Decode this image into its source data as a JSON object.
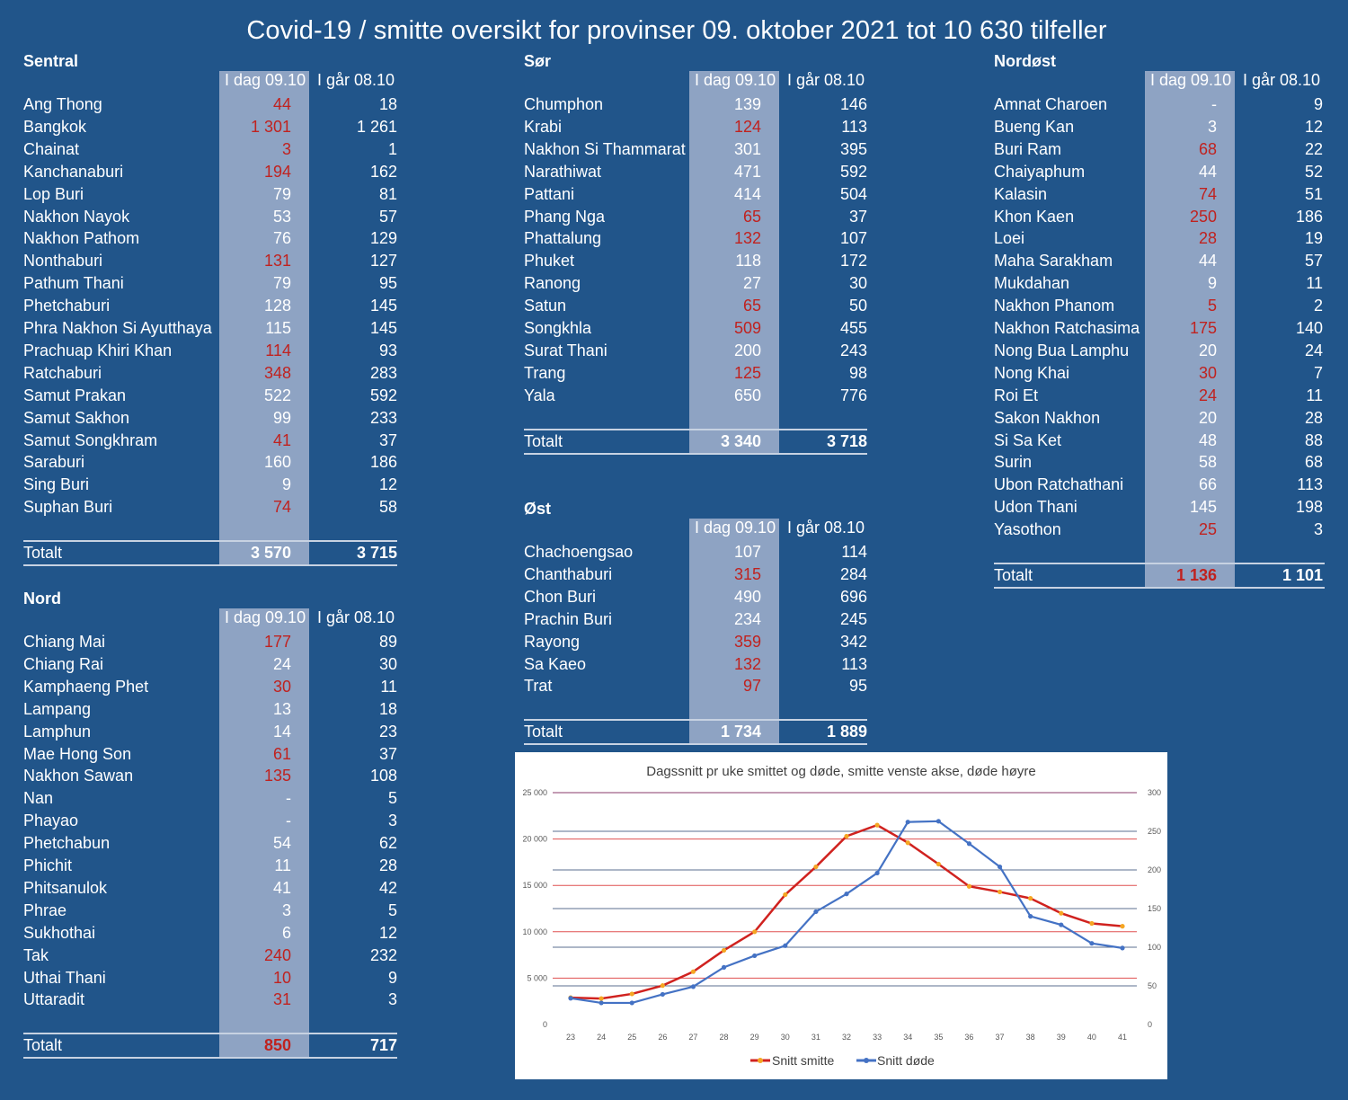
{
  "title": "Covid-19 / smitte oversikt for provinser 09. oktober 2021 tot 10 630 tilfeller",
  "col_today": "I dag 09.10",
  "col_yesterday": "I går 08.10",
  "total_label": "Totalt",
  "colors": {
    "background": "#21558a",
    "shade": "#8ea3c3",
    "increase": "#c0221f",
    "smitte_line": "#d0221f",
    "dode_line": "#4472c4",
    "marker": "#f5a623"
  },
  "regions": {
    "sentral": {
      "name": "Sentral",
      "rows": [
        {
          "name": "Ang Thong",
          "today": "44",
          "yesterday": "18",
          "up": true
        },
        {
          "name": "Bangkok",
          "today": "1 301",
          "yesterday": "1 261",
          "up": true
        },
        {
          "name": "Chainat",
          "today": "3",
          "yesterday": "1",
          "up": true
        },
        {
          "name": "Kanchanaburi",
          "today": "194",
          "yesterday": "162",
          "up": true
        },
        {
          "name": "Lop Buri",
          "today": "79",
          "yesterday": "81",
          "up": false
        },
        {
          "name": "Nakhon Nayok",
          "today": "53",
          "yesterday": "57",
          "up": false
        },
        {
          "name": "Nakhon Pathom",
          "today": "76",
          "yesterday": "129",
          "up": false
        },
        {
          "name": "Nonthaburi",
          "today": "131",
          "yesterday": "127",
          "up": true
        },
        {
          "name": "Pathum Thani",
          "today": "79",
          "yesterday": "95",
          "up": false
        },
        {
          "name": "Phetchaburi",
          "today": "128",
          "yesterday": "145",
          "up": false
        },
        {
          "name": "Phra Nakhon Si Ayutthaya",
          "today": "115",
          "yesterday": "145",
          "up": false
        },
        {
          "name": "Prachuap Khiri Khan",
          "today": "114",
          "yesterday": "93",
          "up": true
        },
        {
          "name": "Ratchaburi",
          "today": "348",
          "yesterday": "283",
          "up": true
        },
        {
          "name": "Samut Prakan",
          "today": "522",
          "yesterday": "592",
          "up": false
        },
        {
          "name": "Samut Sakhon",
          "today": "99",
          "yesterday": "233",
          "up": false
        },
        {
          "name": "Samut Songkhram",
          "today": "41",
          "yesterday": "37",
          "up": true
        },
        {
          "name": "Saraburi",
          "today": "160",
          "yesterday": "186",
          "up": false
        },
        {
          "name": "Sing Buri",
          "today": "9",
          "yesterday": "12",
          "up": false
        },
        {
          "name": "Suphan Buri",
          "today": "74",
          "yesterday": "58",
          "up": true
        }
      ],
      "total": {
        "today": "3 570",
        "yesterday": "3 715",
        "up": false
      }
    },
    "nord": {
      "name": "Nord",
      "rows": [
        {
          "name": "Chiang Mai",
          "today": "177",
          "yesterday": "89",
          "up": true
        },
        {
          "name": "Chiang Rai",
          "today": "24",
          "yesterday": "30",
          "up": false
        },
        {
          "name": "Kamphaeng Phet",
          "today": "30",
          "yesterday": "11",
          "up": true
        },
        {
          "name": "Lampang",
          "today": "13",
          "yesterday": "18",
          "up": false
        },
        {
          "name": "Lamphun",
          "today": "14",
          "yesterday": "23",
          "up": false
        },
        {
          "name": "Mae Hong Son",
          "today": "61",
          "yesterday": "37",
          "up": true
        },
        {
          "name": "Nakhon Sawan",
          "today": "135",
          "yesterday": "108",
          "up": true
        },
        {
          "name": "Nan",
          "today": "-",
          "yesterday": "5",
          "up": false
        },
        {
          "name": "Phayao",
          "today": "-",
          "yesterday": "3",
          "up": false
        },
        {
          "name": "Phetchabun",
          "today": "54",
          "yesterday": "62",
          "up": false
        },
        {
          "name": "Phichit",
          "today": "11",
          "yesterday": "28",
          "up": false
        },
        {
          "name": "Phitsanulok",
          "today": "41",
          "yesterday": "42",
          "up": false
        },
        {
          "name": "Phrae",
          "today": "3",
          "yesterday": "5",
          "up": false
        },
        {
          "name": "Sukhothai",
          "today": "6",
          "yesterday": "12",
          "up": false
        },
        {
          "name": "Tak",
          "today": "240",
          "yesterday": "232",
          "up": true
        },
        {
          "name": "Uthai Thani",
          "today": "10",
          "yesterday": "9",
          "up": true
        },
        {
          "name": "Uttaradit",
          "today": "31",
          "yesterday": "3",
          "up": true
        }
      ],
      "total": {
        "today": "850",
        "yesterday": "717",
        "up": true
      }
    },
    "sor": {
      "name": "Sør",
      "rows": [
        {
          "name": "Chumphon",
          "today": "139",
          "yesterday": "146",
          "up": false
        },
        {
          "name": "Krabi",
          "today": "124",
          "yesterday": "113",
          "up": true
        },
        {
          "name": "Nakhon Si Thammarat",
          "today": "301",
          "yesterday": "395",
          "up": false
        },
        {
          "name": "Narathiwat",
          "today": "471",
          "yesterday": "592",
          "up": false
        },
        {
          "name": "Pattani",
          "today": "414",
          "yesterday": "504",
          "up": false
        },
        {
          "name": "Phang Nga",
          "today": "65",
          "yesterday": "37",
          "up": true
        },
        {
          "name": "Phattalung",
          "today": "132",
          "yesterday": "107",
          "up": true
        },
        {
          "name": "Phuket",
          "today": "118",
          "yesterday": "172",
          "up": false
        },
        {
          "name": "Ranong",
          "today": "27",
          "yesterday": "30",
          "up": false
        },
        {
          "name": "Satun",
          "today": "65",
          "yesterday": "50",
          "up": true
        },
        {
          "name": "Songkhla",
          "today": "509",
          "yesterday": "455",
          "up": true
        },
        {
          "name": "Surat Thani",
          "today": "200",
          "yesterday": "243",
          "up": false
        },
        {
          "name": "Trang",
          "today": "125",
          "yesterday": "98",
          "up": true
        },
        {
          "name": "Yala",
          "today": "650",
          "yesterday": "776",
          "up": false
        }
      ],
      "total": {
        "today": "3 340",
        "yesterday": "3 718",
        "up": false
      }
    },
    "ost": {
      "name": "Øst",
      "rows": [
        {
          "name": "Chachoengsao",
          "today": "107",
          "yesterday": "114",
          "up": false
        },
        {
          "name": "Chanthaburi",
          "today": "315",
          "yesterday": "284",
          "up": true
        },
        {
          "name": "Chon Buri",
          "today": "490",
          "yesterday": "696",
          "up": false
        },
        {
          "name": "Prachin Buri",
          "today": "234",
          "yesterday": "245",
          "up": false
        },
        {
          "name": "Rayong",
          "today": "359",
          "yesterday": "342",
          "up": true
        },
        {
          "name": "Sa Kaeo",
          "today": "132",
          "yesterday": "113",
          "up": true
        },
        {
          "name": "Trat",
          "today": "97",
          "yesterday": "95",
          "up": true
        }
      ],
      "total": {
        "today": "1 734",
        "yesterday": "1 889",
        "up": false
      }
    },
    "nordost": {
      "name": "Nordøst",
      "rows": [
        {
          "name": "Amnat Charoen",
          "today": "-",
          "yesterday": "9",
          "up": false
        },
        {
          "name": "Bueng Kan",
          "today": "3",
          "yesterday": "12",
          "up": false
        },
        {
          "name": "Buri Ram",
          "today": "68",
          "yesterday": "22",
          "up": true
        },
        {
          "name": "Chaiyaphum",
          "today": "44",
          "yesterday": "52",
          "up": false
        },
        {
          "name": "Kalasin",
          "today": "74",
          "yesterday": "51",
          "up": true
        },
        {
          "name": "Khon Kaen",
          "today": "250",
          "yesterday": "186",
          "up": true
        },
        {
          "name": "Loei",
          "today": "28",
          "yesterday": "19",
          "up": true
        },
        {
          "name": "Maha Sarakham",
          "today": "44",
          "yesterday": "57",
          "up": false
        },
        {
          "name": "Mukdahan",
          "today": "9",
          "yesterday": "11",
          "up": false
        },
        {
          "name": "Nakhon Phanom",
          "today": "5",
          "yesterday": "2",
          "up": true
        },
        {
          "name": "Nakhon Ratchasima",
          "today": "175",
          "yesterday": "140",
          "up": true
        },
        {
          "name": "Nong Bua Lamphu",
          "today": "20",
          "yesterday": "24",
          "up": false
        },
        {
          "name": "Nong Khai",
          "today": "30",
          "yesterday": "7",
          "up": true
        },
        {
          "name": "Roi Et",
          "today": "24",
          "yesterday": "11",
          "up": true
        },
        {
          "name": "Sakon Nakhon",
          "today": "20",
          "yesterday": "28",
          "up": false
        },
        {
          "name": "Si Sa Ket",
          "today": "48",
          "yesterday": "88",
          "up": false
        },
        {
          "name": "Surin",
          "today": "58",
          "yesterday": "68",
          "up": false
        },
        {
          "name": "Ubon Ratchathani",
          "today": "66",
          "yesterday": "113",
          "up": false
        },
        {
          "name": "Udon Thani",
          "today": "145",
          "yesterday": "198",
          "up": false
        },
        {
          "name": "Yasothon",
          "today": "25",
          "yesterday": "3",
          "up": true
        }
      ],
      "total": {
        "today": "1 136",
        "yesterday": "1 101",
        "up": true
      }
    }
  },
  "chart_data": {
    "type": "line",
    "title": "Dagssnitt pr uke smittet og døde, smitte venste akse, døde høyre",
    "x": [
      23,
      24,
      25,
      26,
      27,
      28,
      29,
      30,
      31,
      32,
      33,
      34,
      35,
      36,
      37,
      38,
      39,
      40,
      41
    ],
    "y_left": {
      "ylim": [
        0,
        25000
      ],
      "ticks": [
        "0",
        "5 000",
        "10 000",
        "15 000",
        "20 000",
        "25 000"
      ],
      "tick_values": [
        0,
        5000,
        10000,
        15000,
        20000,
        25000
      ]
    },
    "y_right": {
      "ylim": [
        0,
        300
      ],
      "ticks": [
        "0",
        "50",
        "100",
        "150",
        "200",
        "250",
        "300"
      ],
      "tick_values": [
        0,
        50,
        100,
        150,
        200,
        250,
        300
      ]
    },
    "grid": true,
    "legend_position": "bottom",
    "series": [
      {
        "name": "Snitt smitte",
        "axis": "left",
        "color": "#d0221f",
        "values": [
          2900,
          2800,
          3300,
          4200,
          5700,
          8000,
          10000,
          14000,
          17000,
          20300,
          21500,
          19600,
          17300,
          14900,
          14300,
          13600,
          12000,
          10900,
          10600
        ]
      },
      {
        "name": "Snitt døde",
        "axis": "right",
        "color": "#4472c4",
        "values": [
          34,
          28,
          28,
          39,
          49,
          74,
          89,
          102,
          146,
          169,
          196,
          262,
          263,
          234,
          204,
          140,
          129,
          105,
          99
        ]
      }
    ]
  }
}
